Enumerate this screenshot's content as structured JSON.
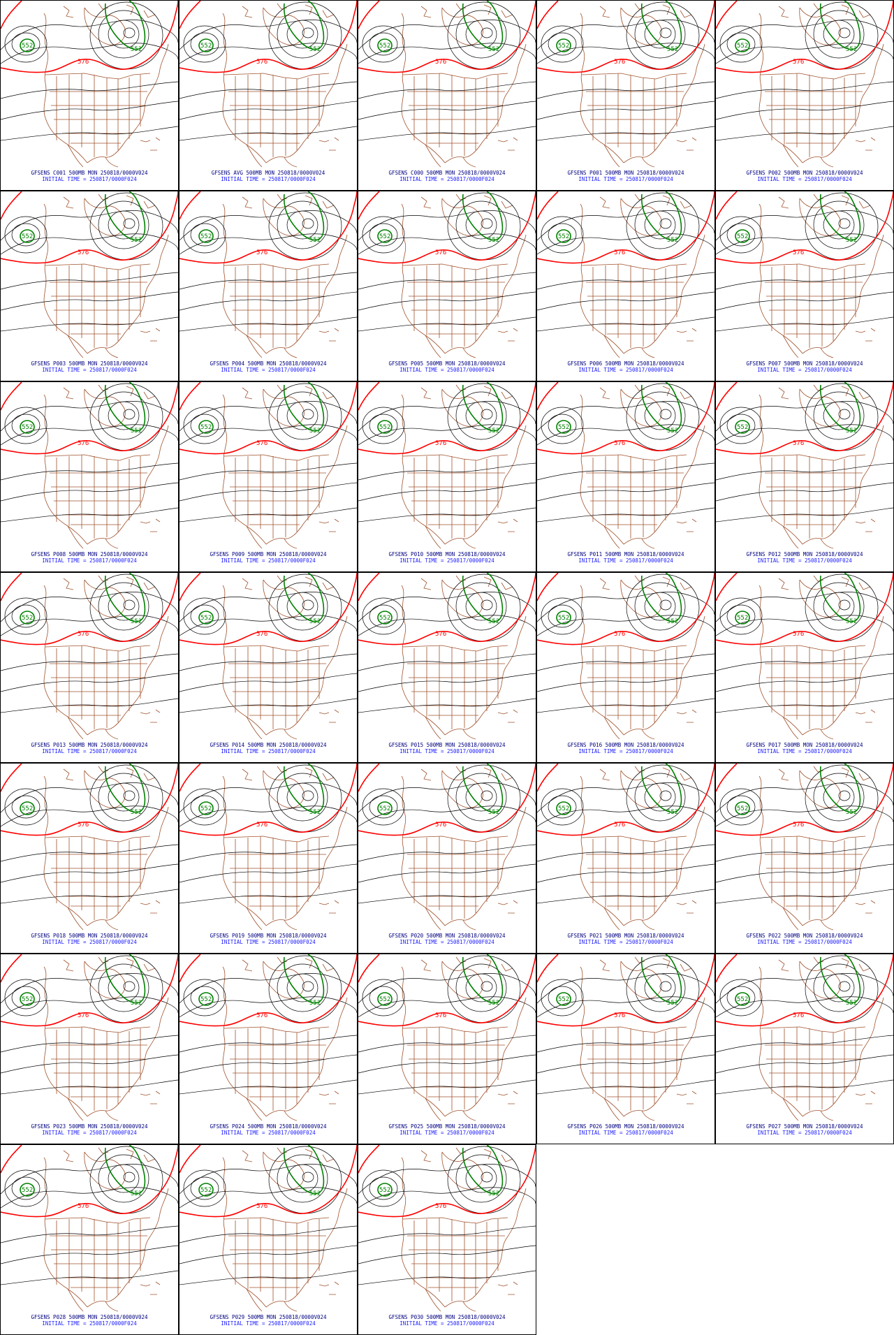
{
  "colors": {
    "background": "#ffffff",
    "border": "#000000",
    "geo_boundaries": "#a0522d",
    "height_contours": "#000000",
    "contour_576": "#ff0000",
    "contour_552": "#008000",
    "caption_line1": "#000080",
    "caption_line2": "#1a1aff"
  },
  "contour_labels": {
    "red": "576",
    "green": "552"
  },
  "panels": [
    {
      "title": "GFSENS C001 500MB MON 250818/0000V024",
      "init": "INITIAL TIME = 250817/0000F024"
    },
    {
      "title": "GFSENS AVG 500MB MON 250818/0000V024",
      "init": "INITIAL TIME = 250817/0000F024"
    },
    {
      "title": "GFSENS C000 500MB MON 250818/0000V024",
      "init": "INITIAL TIME = 250817/0000F024"
    },
    {
      "title": "GFSENS P001 500MB MON 250818/0000V024",
      "init": "INITIAL TIME = 250817/0000F024"
    },
    {
      "title": "GFSENS P002 500MB MON 250818/0000V024",
      "init": "INITIAL TIME = 250817/0000F024"
    },
    {
      "title": "GFSENS P003 500MB MON 250818/0000V024",
      "init": "INITIAL TIME = 250817/0000F024"
    },
    {
      "title": "GFSENS P004 500MB MON 250818/0000V024",
      "init": "INITIAL TIME = 250817/0000F024"
    },
    {
      "title": "GFSENS P005 500MB MON 250818/0000V024",
      "init": "INITIAL TIME = 250817/0000F024"
    },
    {
      "title": "GFSENS P006 500MB MON 250818/0000V024",
      "init": "INITIAL TIME = 250817/0000F024"
    },
    {
      "title": "GFSENS P007 500MB MON 250818/0000V024",
      "init": "INITIAL TIME = 250817/0000F024"
    },
    {
      "title": "GFSENS P008 500MB MON 250818/0000V024",
      "init": "INITIAL TIME = 250817/0000F024"
    },
    {
      "title": "GFSENS P009 500MB MON 250818/0000V024",
      "init": "INITIAL TIME = 250817/0000F024"
    },
    {
      "title": "GFSENS P010 500MB MON 250818/0000V024",
      "init": "INITIAL TIME = 250817/0000F024"
    },
    {
      "title": "GFSENS P011 500MB MON 250818/0000V024",
      "init": "INITIAL TIME = 250817/0000F024"
    },
    {
      "title": "GFSENS P012 500MB MON 250818/0000V024",
      "init": "INITIAL TIME = 250817/0000F024"
    },
    {
      "title": "GFSENS P013 500MB MON 250818/0000V024",
      "init": "INITIAL TIME = 250817/0000F024"
    },
    {
      "title": "GFSENS P014 500MB MON 250818/0000V024",
      "init": "INITIAL TIME = 250817/0000F024"
    },
    {
      "title": "GFSENS P015 500MB MON 250818/0000V024",
      "init": "INITIAL TIME = 250817/0000F024"
    },
    {
      "title": "GFSENS P016 500MB MON 250818/0000V024",
      "init": "INITIAL TIME = 250817/0000F024"
    },
    {
      "title": "GFSENS P017 500MB MON 250818/0000V024",
      "init": "INITIAL TIME = 250817/0000F024"
    },
    {
      "title": "GFSENS P018 500MB MON 250818/0000V024",
      "init": "INITIAL TIME = 250817/0000F024"
    },
    {
      "title": "GFSENS P019 500MB MON 250818/0000V024",
      "init": "INITIAL TIME = 250817/0000F024"
    },
    {
      "title": "GFSENS P020 500MB MON 250818/0000V024",
      "init": "INITIAL TIME = 250817/0000F024"
    },
    {
      "title": "GFSENS P021 500MB MON 250818/0000V024",
      "init": "INITIAL TIME = 250817/0000F024"
    },
    {
      "title": "GFSENS P022 500MB MON 250818/0000V024",
      "init": "INITIAL TIME = 250817/0000F024"
    },
    {
      "title": "GFSENS P023 500MB MON 250818/0000V024",
      "init": "INITIAL TIME = 250817/0000F024"
    },
    {
      "title": "GFSENS P024 500MB MON 250818/0000V024",
      "init": "INITIAL TIME = 250817/0000F024"
    },
    {
      "title": "GFSENS P025 500MB MON 250818/0000V024",
      "init": "INITIAL TIME = 250817/0000F024"
    },
    {
      "title": "GFSENS P026 500MB MON 250818/0000V024",
      "init": "INITIAL TIME = 250817/0000F024"
    },
    {
      "title": "GFSENS P027 500MB MON 250818/0000V024",
      "init": "INITIAL TIME = 250817/0000F024"
    },
    {
      "title": "GFSENS P028 500MB MON 250818/0000V024",
      "init": "INITIAL TIME = 250817/0000F024"
    },
    {
      "title": "GFSENS P029 500MB MON 250818/0000V024",
      "init": "INITIAL TIME = 250817/0000F024"
    },
    {
      "title": "GFSENS P030 500MB MON 250818/0000V024",
      "init": "INITIAL TIME = 250817/0000F024"
    }
  ]
}
